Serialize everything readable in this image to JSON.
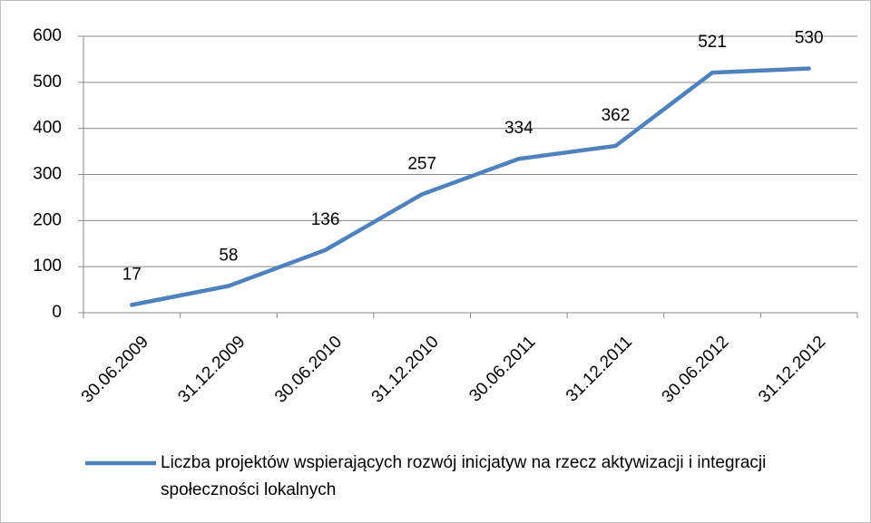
{
  "chart_data": {
    "type": "line",
    "categories": [
      "30.06.2009",
      "31.12.2009",
      "30.06.2010",
      "31.12.2010",
      "30.06.2011",
      "31.12.2011",
      "30.06.2012",
      "31.12.2012"
    ],
    "series": [
      {
        "name": "Liczba projektów wspierających rozwój inicjatyw na rzecz aktywizacji i integracji społeczności lokalnych",
        "color": "#4f81bd",
        "values": [
          17,
          58,
          136,
          257,
          334,
          362,
          521,
          530
        ]
      }
    ],
    "ylim": [
      0,
      600
    ],
    "yticks": [
      0,
      100,
      200,
      300,
      400,
      500,
      600
    ],
    "grid": true,
    "legend": "bottom"
  }
}
